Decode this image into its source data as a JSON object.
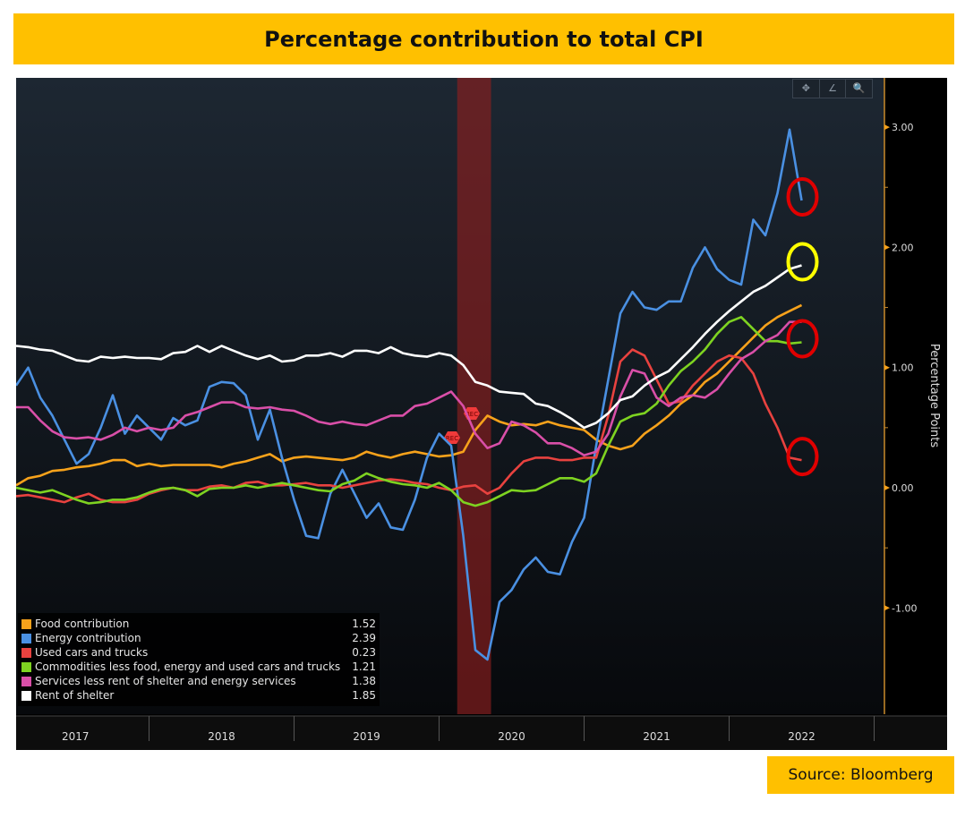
{
  "title": "Percentage contribution to total CPI",
  "source": "Source: Bloomberg",
  "toolbar": {
    "icons": [
      "crosshair-icon",
      "pencil-icon",
      "magnifier-icon"
    ],
    "glyphs": [
      "✥",
      "∠",
      "🔍"
    ]
  },
  "chart_data": {
    "type": "line",
    "title": "Percentage contribution to total CPI",
    "ylabel": "Percentage Points",
    "xlabel": "",
    "x_start": "2017-02",
    "x_frequency": "monthly",
    "ylim": [
      -1.85,
      3.4
    ],
    "yticks": [
      3.0,
      2.0,
      1.0,
      0.0,
      -1.0
    ],
    "ytick_labels": [
      "3.00",
      "2.00",
      "1.00",
      "0.00",
      "-1.00"
    ],
    "xtick_labels": [
      "2017",
      "2018",
      "2019",
      "2020",
      "2021",
      "2022"
    ],
    "recession_band": {
      "label": "REC",
      "start": "2020-03",
      "end": "2020-05"
    },
    "legend_position": "bottom-left",
    "series": [
      {
        "name": "Food contribution",
        "last": "1.52",
        "color": "#F7A21B",
        "values": [
          0.02,
          0.08,
          0.1,
          0.14,
          0.15,
          0.17,
          0.18,
          0.2,
          0.23,
          0.23,
          0.18,
          0.2,
          0.18,
          0.19,
          0.19,
          0.19,
          0.19,
          0.17,
          0.2,
          0.22,
          0.25,
          0.28,
          0.22,
          0.25,
          0.26,
          0.25,
          0.24,
          0.23,
          0.25,
          0.3,
          0.27,
          0.25,
          0.28,
          0.3,
          0.28,
          0.26,
          0.27,
          0.3,
          0.48,
          0.6,
          0.55,
          0.52,
          0.53,
          0.52,
          0.55,
          0.52,
          0.5,
          0.48,
          0.4,
          0.35,
          0.32,
          0.35,
          0.45,
          0.52,
          0.6,
          0.7,
          0.77,
          0.88,
          0.95,
          1.05,
          1.15,
          1.25,
          1.35,
          1.42,
          1.47,
          1.52
        ]
      },
      {
        "name": "Energy contribution",
        "last": "2.39",
        "color": "#4A90E2",
        "values": [
          0.85,
          1.0,
          0.75,
          0.6,
          0.4,
          0.2,
          0.28,
          0.5,
          0.77,
          0.45,
          0.6,
          0.5,
          0.4,
          0.58,
          0.52,
          0.56,
          0.84,
          0.88,
          0.87,
          0.77,
          0.4,
          0.65,
          0.25,
          -0.1,
          -0.4,
          -0.42,
          -0.05,
          0.15,
          -0.05,
          -0.25,
          -0.13,
          -0.33,
          -0.35,
          -0.1,
          0.25,
          0.45,
          0.35,
          -0.4,
          -1.35,
          -1.43,
          -0.95,
          -0.85,
          -0.68,
          -0.58,
          -0.7,
          -0.72,
          -0.45,
          -0.25,
          0.35,
          0.9,
          1.45,
          1.63,
          1.5,
          1.48,
          1.55,
          1.55,
          1.83,
          2.0,
          1.82,
          1.73,
          1.69,
          2.23,
          2.1,
          2.45,
          2.98,
          2.39
        ]
      },
      {
        "name": "Used cars and trucks",
        "last": "0.23",
        "color": "#E8423F",
        "values": [
          -0.07,
          -0.06,
          -0.08,
          -0.1,
          -0.12,
          -0.08,
          -0.05,
          -0.1,
          -0.12,
          -0.12,
          -0.1,
          -0.05,
          -0.02,
          0.0,
          -0.02,
          -0.02,
          0.01,
          0.02,
          0.0,
          0.04,
          0.05,
          0.02,
          0.02,
          0.03,
          0.04,
          0.02,
          0.02,
          0.0,
          0.02,
          0.04,
          0.06,
          0.07,
          0.06,
          0.04,
          0.03,
          0.0,
          -0.02,
          0.01,
          0.02,
          -0.05,
          0.0,
          0.12,
          0.22,
          0.25,
          0.25,
          0.23,
          0.23,
          0.25,
          0.25,
          0.6,
          1.05,
          1.15,
          1.1,
          0.9,
          0.7,
          0.72,
          0.85,
          0.95,
          1.05,
          1.1,
          1.08,
          0.95,
          0.7,
          0.5,
          0.25,
          0.23
        ]
      },
      {
        "name": "Commodities less food, energy and used cars and trucks",
        "last": "1.21",
        "color": "#7ED321",
        "values": [
          0.0,
          -0.02,
          -0.04,
          -0.02,
          -0.06,
          -0.1,
          -0.13,
          -0.12,
          -0.1,
          -0.1,
          -0.08,
          -0.04,
          -0.01,
          0.0,
          -0.02,
          -0.07,
          -0.01,
          0.0,
          0.0,
          0.02,
          0.0,
          0.02,
          0.04,
          0.02,
          0.0,
          -0.02,
          -0.03,
          0.03,
          0.06,
          0.12,
          0.08,
          0.05,
          0.03,
          0.02,
          0.0,
          0.04,
          -0.02,
          -0.12,
          -0.15,
          -0.12,
          -0.07,
          -0.02,
          -0.03,
          -0.02,
          0.03,
          0.08,
          0.08,
          0.05,
          0.12,
          0.35,
          0.55,
          0.6,
          0.62,
          0.7,
          0.85,
          0.97,
          1.05,
          1.15,
          1.28,
          1.38,
          1.42,
          1.32,
          1.22,
          1.22,
          1.2,
          1.21
        ]
      },
      {
        "name": "Services less rent of shelter and energy services",
        "last": "1.38",
        "color": "#D94FA8",
        "values": [
          0.67,
          0.67,
          0.56,
          0.47,
          0.42,
          0.41,
          0.42,
          0.4,
          0.44,
          0.5,
          0.47,
          0.5,
          0.48,
          0.5,
          0.6,
          0.63,
          0.67,
          0.71,
          0.71,
          0.67,
          0.66,
          0.67,
          0.65,
          0.64,
          0.6,
          0.55,
          0.53,
          0.55,
          0.53,
          0.52,
          0.56,
          0.6,
          0.6,
          0.68,
          0.7,
          0.75,
          0.8,
          0.68,
          0.45,
          0.33,
          0.37,
          0.55,
          0.52,
          0.46,
          0.37,
          0.37,
          0.33,
          0.27,
          0.3,
          0.45,
          0.76,
          0.98,
          0.95,
          0.75,
          0.68,
          0.75,
          0.77,
          0.75,
          0.82,
          0.95,
          1.07,
          1.13,
          1.22,
          1.27,
          1.38,
          1.38
        ]
      },
      {
        "name": "Rent of shelter",
        "last": "1.85",
        "color": "#FFFFFF",
        "values": [
          1.18,
          1.17,
          1.15,
          1.14,
          1.1,
          1.06,
          1.05,
          1.09,
          1.08,
          1.09,
          1.08,
          1.08,
          1.07,
          1.12,
          1.13,
          1.18,
          1.13,
          1.18,
          1.14,
          1.1,
          1.07,
          1.1,
          1.05,
          1.06,
          1.1,
          1.1,
          1.12,
          1.09,
          1.14,
          1.14,
          1.12,
          1.17,
          1.12,
          1.1,
          1.09,
          1.12,
          1.1,
          1.02,
          0.88,
          0.85,
          0.8,
          0.79,
          0.78,
          0.7,
          0.68,
          0.63,
          0.57,
          0.5,
          0.54,
          0.62,
          0.73,
          0.76,
          0.85,
          0.92,
          0.97,
          1.07,
          1.17,
          1.28,
          1.38,
          1.47,
          1.55,
          1.63,
          1.68,
          1.75,
          1.82,
          1.85
        ]
      }
    ],
    "annotations": [
      {
        "type": "circle",
        "color": "#E00000",
        "series": "Energy contribution"
      },
      {
        "type": "circle",
        "color": "#FFFF00",
        "series": "Rent of shelter"
      },
      {
        "type": "circle",
        "color": "#E00000",
        "series": "Commodities less food, energy and used cars and trucks"
      },
      {
        "type": "circle",
        "color": "#E00000",
        "series": "Used cars and trucks"
      }
    ]
  }
}
